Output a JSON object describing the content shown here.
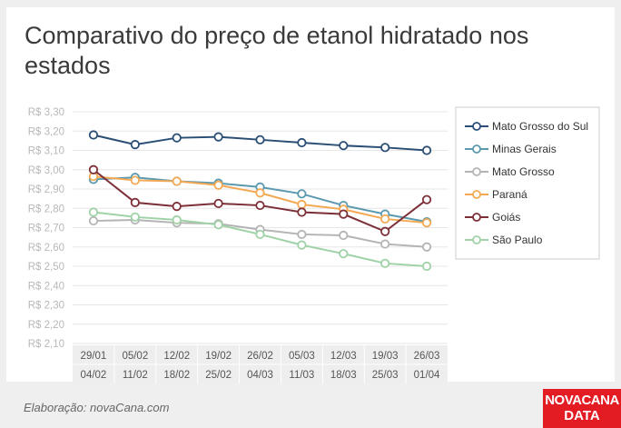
{
  "title": "Comparativo do preço de etanol hidratado nos estados",
  "footer": {
    "credit": "Elaboração: novaCana.com"
  },
  "logo": {
    "line1": "NOVACANA",
    "line2": "DATA"
  },
  "chart_data": {
    "type": "line",
    "title": "Comparativo do preço de etanol hidratado nos estados",
    "categories": [
      "29/01 04/02",
      "05/02 11/02",
      "12/02 18/02",
      "19/02 25/02",
      "26/02 04/03",
      "05/03 11/03",
      "12/03 18/03",
      "19/03 25/03",
      "26/03 01/04"
    ],
    "x_labels_top": [
      "29/01",
      "05/02",
      "12/02",
      "19/02",
      "26/02",
      "05/03",
      "12/03",
      "19/03",
      "26/03"
    ],
    "x_labels_bottom": [
      "04/02",
      "11/02",
      "18/02",
      "25/02",
      "04/03",
      "11/03",
      "18/03",
      "25/03",
      "01/04"
    ],
    "ylim": [
      2.1,
      3.3
    ],
    "yticks": [
      "R$ 3,30",
      "R$ 3,20",
      "R$ 3,10",
      "R$ 3,00",
      "R$ 2,90",
      "R$ 2,80",
      "R$ 2,70",
      "R$ 2,60",
      "R$ 2,50",
      "R$ 2,40",
      "R$ 2,30",
      "R$ 2,20",
      "R$ 2,10"
    ],
    "ytick_values": [
      3.3,
      3.2,
      3.1,
      3.0,
      2.9,
      2.8,
      2.7,
      2.6,
      2.5,
      2.4,
      2.3,
      2.2,
      2.1
    ],
    "grid": true,
    "legend_position": "right",
    "series": [
      {
        "name": "Mato Grosso do Sul",
        "color": "#2b4e75",
        "values": [
          3.18,
          3.13,
          3.165,
          3.17,
          3.155,
          3.14,
          3.125,
          3.115,
          3.1
        ]
      },
      {
        "name": "Minas Gerais",
        "color": "#5b99ae",
        "values": [
          2.95,
          2.96,
          2.94,
          2.93,
          2.91,
          2.875,
          2.815,
          2.77,
          2.73
        ]
      },
      {
        "name": "Mato Grosso",
        "color": "#b4b4b4",
        "values": [
          2.735,
          2.74,
          2.725,
          2.72,
          2.69,
          2.665,
          2.66,
          2.615,
          2.6
        ]
      },
      {
        "name": "Paraná",
        "color": "#f3a954",
        "values": [
          2.965,
          2.945,
          2.94,
          2.92,
          2.88,
          2.82,
          2.795,
          2.745,
          2.725
        ]
      },
      {
        "name": "Goiás",
        "color": "#7d2f38",
        "values": [
          3.0,
          2.83,
          2.81,
          2.825,
          2.815,
          2.78,
          2.77,
          2.68,
          2.845
        ]
      },
      {
        "name": "São Paulo",
        "color": "#9fd2a7",
        "values": [
          2.78,
          2.755,
          2.74,
          2.715,
          2.665,
          2.61,
          2.565,
          2.515,
          2.5
        ]
      }
    ]
  }
}
